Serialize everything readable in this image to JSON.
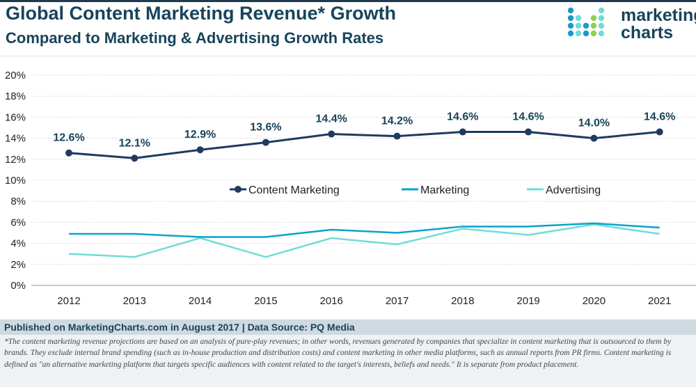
{
  "header": {
    "title": "Global Content Marketing Revenue* Growth",
    "subtitle": "Compared to Marketing & Advertising Growth Rates"
  },
  "logo": {
    "line1": "marketing",
    "line2": "charts"
  },
  "colors": {
    "content": "#1f3a5f",
    "marketing": "#0aa3c9",
    "advertising": "#6fdcd8",
    "title": "#17445a"
  },
  "chart_data": {
    "type": "line",
    "categories": [
      "2012",
      "2013",
      "2014",
      "2015",
      "2016",
      "2017",
      "2018",
      "2019",
      "2020",
      "2021"
    ],
    "ylim": [
      0,
      20
    ],
    "yticks": [
      "0%",
      "2%",
      "4%",
      "6%",
      "8%",
      "10%",
      "12%",
      "14%",
      "16%",
      "18%",
      "20%"
    ],
    "grid": true,
    "legend": "center",
    "series": [
      {
        "name": "Content Marketing",
        "values": [
          12.6,
          12.1,
          12.9,
          13.6,
          14.4,
          14.2,
          14.6,
          14.6,
          14.0,
          14.6
        ],
        "labels": [
          "12.6%",
          "12.1%",
          "12.9%",
          "13.6%",
          "14.4%",
          "14.2%",
          "14.6%",
          "14.6%",
          "14.0%",
          "14.6%"
        ]
      },
      {
        "name": "Marketing",
        "values": [
          4.9,
          4.9,
          4.6,
          4.6,
          5.3,
          5.0,
          5.6,
          5.6,
          5.9,
          5.5
        ]
      },
      {
        "name": "Advertising",
        "values": [
          3.0,
          2.7,
          4.5,
          2.7,
          4.5,
          3.9,
          5.4,
          4.8,
          5.8,
          4.9
        ]
      }
    ]
  },
  "footer": {
    "source": "Published on MarketingCharts.com in August 2017 | Data Source: PQ Media",
    "note": "*The content marketing revenue projections are based on an analysis of pure-play revenues; in other words, revenues generated by companies that specialize in content marketing that is outsourced to them by brands. They exclude internal brand spending (such as in-house production and distribution costs) and content marketing in other media platforms, such as annual reports from PR firms. Content marketing is defined as \"an alternative marketing platform that targets specific audiences with content related to the target's interests, beliefs and needs.\" It is separate from product placement."
  }
}
